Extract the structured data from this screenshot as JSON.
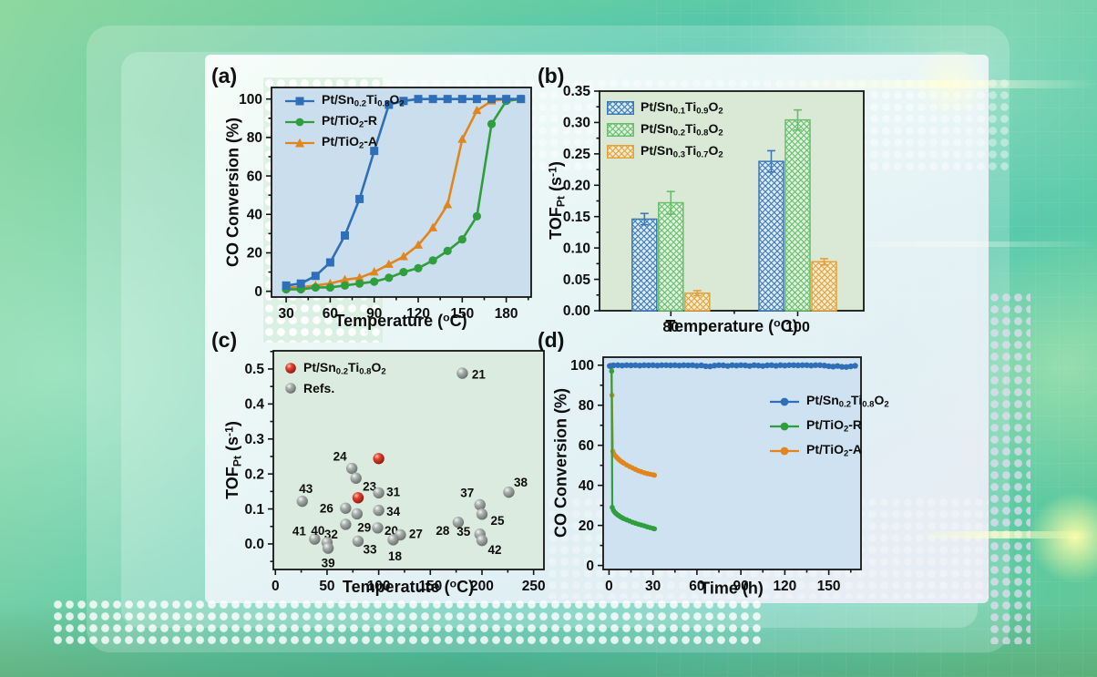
{
  "panels": {
    "a": {
      "label": "(a)"
    },
    "b": {
      "label": "(b)"
    },
    "c": {
      "label": "(c)"
    },
    "d": {
      "label": "(d)"
    }
  },
  "chart_data": [
    {
      "panel": "a",
      "type": "line",
      "title": "",
      "xlabel": "Temperature (^{o}C)",
      "ylabel": "CO Conversion (%)",
      "xlim": [
        20,
        197
      ],
      "ylim": [
        -3,
        106
      ],
      "xticks": [
        "30",
        "60",
        "90",
        "120",
        "150",
        "180"
      ],
      "yticks": [
        "0",
        "20",
        "40",
        "60",
        "80",
        "100"
      ],
      "grid": false,
      "legend_position": "top-left",
      "plot_bg": "#cbdeee",
      "x": [
        30,
        40,
        50,
        60,
        70,
        80,
        90,
        100,
        110,
        120,
        130,
        140,
        150,
        160,
        170,
        180,
        190
      ],
      "series": [
        {
          "name": "Pt/Sn_{0.2}Ti_{0.8}O_{2}",
          "marker": "square",
          "color": "#2e6fb7",
          "values": [
            3,
            4,
            8,
            15,
            29,
            48,
            73,
            97,
            99,
            100,
            100,
            100,
            100,
            100,
            100,
            100,
            100
          ]
        },
        {
          "name": "Pt/TiO_{2}-R",
          "marker": "circle",
          "color": "#2f9e3c",
          "values": [
            1,
            1,
            2,
            2,
            3,
            4,
            5,
            7,
            10,
            12,
            16,
            21,
            27,
            39,
            87,
            99,
            100
          ]
        },
        {
          "name": "Pt/TiO_{2}-A",
          "marker": "triangle",
          "color": "#e2851c",
          "values": [
            2,
            2,
            3,
            4,
            6,
            7,
            10,
            14,
            18,
            24,
            33,
            45,
            79,
            94,
            99,
            100,
            100
          ]
        }
      ]
    },
    {
      "panel": "b",
      "type": "bar",
      "title": "",
      "xlabel": "Temperature (^{o}C)",
      "ylabel": "TOF_{Pt} (s^{-1})",
      "ylim": [
        0,
        0.35
      ],
      "yticks": [
        "0.00",
        "0.05",
        "0.10",
        "0.15",
        "0.20",
        "0.25",
        "0.30",
        "0.35"
      ],
      "categories": [
        "80",
        "100"
      ],
      "grid": false,
      "legend_position": "top-left",
      "plot_bg": "#d9e9d5",
      "series": [
        {
          "name": "Pt/Sn_{0.1}Ti_{0.9}O_{2}",
          "color": "#3b79b5",
          "fill": "#dcebf5",
          "values": [
            0.146,
            0.238
          ],
          "errors": [
            0.009,
            0.017
          ]
        },
        {
          "name": "Pt/Sn_{0.2}Ti_{0.8}O_{2}",
          "color": "#67bd6a",
          "fill": "#dff2e0",
          "values": [
            0.172,
            0.304
          ],
          "errors": [
            0.018,
            0.016
          ]
        },
        {
          "name": "Pt/Sn_{0.3}Ti_{0.7}O_{2}",
          "color": "#e2a23c",
          "fill": "#f8ecd0",
          "values": [
            0.028,
            0.078
          ],
          "errors": [
            0.004,
            0.005
          ]
        }
      ]
    },
    {
      "panel": "c",
      "type": "scatter",
      "title": "",
      "xlabel": "Temperatute (^{o}C)",
      "ylabel": "TOF_{Pt} (s^{-1})",
      "xlim": [
        -2,
        260
      ],
      "ylim": [
        -0.073,
        0.552
      ],
      "xticks": [
        "0",
        "50",
        "100",
        "150",
        "200",
        "250"
      ],
      "yticks": [
        "0.0",
        "0.1",
        "0.2",
        "0.3",
        "0.4",
        "0.5"
      ],
      "grid": false,
      "legend_position": "top-left",
      "plot_bg": "#dcebdf",
      "series": [
        {
          "name": "Pt/Sn_{0.2}Ti_{0.8}O_{2}",
          "style": "red-sphere",
          "points": [
            {
              "x": 80,
              "y": 0.132
            },
            {
              "x": 100,
              "y": 0.244
            }
          ]
        },
        {
          "name": "Refs.",
          "style": "gray-sphere",
          "points": [
            {
              "x": 181,
              "y": 0.488,
              "label": "21",
              "ldx": 18,
              "ldy": 1
            },
            {
              "x": 74,
              "y": 0.216,
              "label": "24",
              "ldx": -13,
              "ldy": -13
            },
            {
              "x": 78,
              "y": 0.188,
              "label": "23",
              "ldx": 15,
              "ldy": 9
            },
            {
              "x": 100,
              "y": 0.146,
              "label": "31",
              "ldx": 16,
              "ldy": -1
            },
            {
              "x": 26,
              "y": 0.122,
              "label": "43",
              "ldx": 4,
              "ldy": -14
            },
            {
              "x": 68,
              "y": 0.102,
              "label": "26",
              "ldx": -21,
              "ldy": 0
            },
            {
              "x": 100,
              "y": 0.096,
              "label": "34",
              "ldx": 16,
              "ldy": 1
            },
            {
              "x": 79,
              "y": 0.086,
              "label": "29",
              "ldx": 8,
              "ldy": 15
            },
            {
              "x": 198,
              "y": 0.112,
              "label": "37",
              "ldx": -14,
              "ldy": -13
            },
            {
              "x": 226,
              "y": 0.148,
              "label": "38",
              "ldx": 13,
              "ldy": -11
            },
            {
              "x": 200,
              "y": 0.085,
              "label": "25",
              "ldx": 17,
              "ldy": 7
            },
            {
              "x": 177,
              "y": 0.062,
              "label": "28",
              "ldx": -17,
              "ldy": 9
            },
            {
              "x": 68,
              "y": 0.056,
              "label": "32",
              "ldx": -16,
              "ldy": 11
            },
            {
              "x": 99,
              "y": 0.046,
              "label": "20",
              "ldx": 15,
              "ldy": 3
            },
            {
              "x": 121,
              "y": 0.026,
              "label": "27",
              "ldx": 17,
              "ldy": -1
            },
            {
              "x": 114,
              "y": 0.012,
              "label": "18",
              "ldx": 2,
              "ldy": 18
            },
            {
              "x": 80,
              "y": 0.008,
              "label": "33",
              "ldx": 13,
              "ldy": 9
            },
            {
              "x": 38,
              "y": 0.014,
              "label": "41",
              "ldx": -17,
              "ldy": -9
            },
            {
              "x": 50,
              "y": 0.004,
              "label": "40",
              "ldx": -10,
              "ldy": -13
            },
            {
              "x": 51,
              "y": -0.012,
              "label": "39",
              "ldx": 0,
              "ldy": 16
            },
            {
              "x": 198,
              "y": 0.028,
              "label": "35",
              "ldx": -18,
              "ldy": -3
            },
            {
              "x": 200,
              "y": 0.01,
              "label": "42",
              "ldx": 14,
              "ldy": 10
            }
          ]
        }
      ]
    },
    {
      "panel": "d",
      "type": "line",
      "title": "",
      "xlabel": "Time (h)",
      "ylabel": "CO Conversion (%)",
      "xlim": [
        -4,
        172
      ],
      "ylim": [
        -2,
        104
      ],
      "xticks": [
        "0",
        "30",
        "60",
        "90",
        "120",
        "150"
      ],
      "yticks": [
        "0",
        "20",
        "40",
        "60",
        "80",
        "100"
      ],
      "grid": false,
      "legend_position": "center-right",
      "plot_bg": "#cfe2f1",
      "series": [
        {
          "name": "Pt/Sn_{0.2}Ti_{0.8}O_{2}",
          "marker": "circle",
          "color": "#2e6fb7",
          "lw": 4.5,
          "msize": 3.2,
          "pairs": [
            [
              0.5,
              99.6
            ],
            [
              3,
              99.9
            ],
            [
              6,
              100
            ],
            [
              9,
              99.8
            ],
            [
              12,
              100
            ],
            [
              15,
              99.9
            ],
            [
              18,
              100
            ],
            [
              21,
              99.8
            ],
            [
              24,
              100
            ],
            [
              27,
              99.9
            ],
            [
              30,
              100
            ],
            [
              33,
              99.8
            ],
            [
              36,
              100
            ],
            [
              39,
              100
            ],
            [
              42,
              99.9
            ],
            [
              45,
              100
            ],
            [
              48,
              99.8
            ],
            [
              51,
              100
            ],
            [
              54,
              99.9
            ],
            [
              57,
              100
            ],
            [
              60,
              99.7
            ],
            [
              63,
              99.9
            ],
            [
              66,
              99.5
            ],
            [
              69,
              99.4
            ],
            [
              72,
              99.8
            ],
            [
              75,
              100
            ],
            [
              78,
              99.9
            ],
            [
              81,
              99.6
            ],
            [
              84,
              100
            ],
            [
              87,
              99.8
            ],
            [
              90,
              100
            ],
            [
              93,
              99.9
            ],
            [
              96,
              99.6
            ],
            [
              99,
              100
            ],
            [
              102,
              99.8
            ],
            [
              105,
              99.6
            ],
            [
              108,
              99.9
            ],
            [
              111,
              100
            ],
            [
              114,
              99.7
            ],
            [
              117,
              100
            ],
            [
              120,
              99.8
            ],
            [
              123,
              100
            ],
            [
              126,
              100
            ],
            [
              129,
              99.9
            ],
            [
              132,
              100
            ],
            [
              135,
              100
            ],
            [
              138,
              99.8
            ],
            [
              141,
              100
            ],
            [
              144,
              100
            ],
            [
              147,
              99.8
            ],
            [
              150,
              99.5
            ],
            [
              153,
              99.3
            ],
            [
              156,
              99.6
            ],
            [
              159,
              99.2
            ],
            [
              162,
              99.1
            ],
            [
              165,
              99.4
            ],
            [
              168,
              99.7
            ]
          ]
        },
        {
          "name": "Pt/TiO_{2}-R",
          "marker": "circle",
          "color": "#2f9e3c",
          "lw": 2.2,
          "msize": 2.8,
          "pairs": [
            [
              1,
              99.5
            ],
            [
              1.8,
              97
            ],
            [
              2.2,
              29
            ],
            [
              3,
              27.5
            ],
            [
              4,
              26.5
            ],
            [
              5,
              25.8
            ],
            [
              6,
              25.2
            ],
            [
              7,
              24.7
            ],
            [
              8,
              24.2
            ],
            [
              9,
              23.8
            ],
            [
              10,
              23.4
            ],
            [
              12,
              22.8
            ],
            [
              14,
              22.2
            ],
            [
              16,
              21.6
            ],
            [
              18,
              21.1
            ],
            [
              20,
              20.6
            ],
            [
              22,
              20.2
            ],
            [
              24,
              19.8
            ],
            [
              26,
              19.3
            ],
            [
              28,
              18.9
            ],
            [
              30,
              18.5
            ],
            [
              31,
              18.3
            ]
          ]
        },
        {
          "name": "Pt/TiO_{2}-A",
          "marker": "circle",
          "color": "#e2851c",
          "lw": 2.2,
          "msize": 2.8,
          "pairs": [
            [
              1,
              100
            ],
            [
              1.6,
              99
            ],
            [
              2,
              85
            ],
            [
              2.6,
              57
            ],
            [
              3,
              56
            ],
            [
              4,
              55
            ],
            [
              5,
              54.2
            ],
            [
              6,
              53.4
            ],
            [
              7,
              52.7
            ],
            [
              8,
              52.1
            ],
            [
              9,
              51.6
            ],
            [
              10,
              51.1
            ],
            [
              12,
              50.2
            ],
            [
              14,
              49.4
            ],
            [
              16,
              48.7
            ],
            [
              18,
              48
            ],
            [
              20,
              47.3
            ],
            [
              22,
              46.8
            ],
            [
              24,
              46.3
            ],
            [
              26,
              45.9
            ],
            [
              28,
              45.6
            ],
            [
              30,
              45.3
            ],
            [
              31,
              45.1
            ]
          ]
        }
      ]
    }
  ]
}
